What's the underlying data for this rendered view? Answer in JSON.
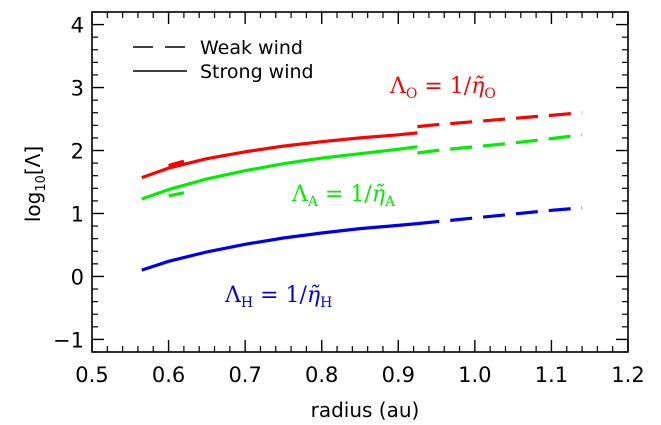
{
  "chart_data": {
    "type": "line",
    "title": "",
    "xlabel": "radius (au)",
    "ylabel_prefix": "log",
    "ylabel_sub": "10",
    "ylabel_bracket": "[Λ]",
    "xlim": [
      0.5,
      1.2
    ],
    "ylim": [
      -1.2,
      4.2
    ],
    "x_ticks": [
      0.5,
      0.6,
      0.7,
      0.8,
      0.9,
      1.0,
      1.1,
      1.2
    ],
    "x_tick_labels": [
      "0.5",
      "0.6",
      "0.7",
      "0.8",
      "0.9",
      "1.0",
      "1.1",
      "1.2"
    ],
    "y_ticks": [
      -1,
      0,
      1,
      2,
      3,
      4
    ],
    "y_tick_labels": [
      "−1",
      "0",
      "1",
      "2",
      "3",
      "4"
    ],
    "grid": false,
    "legend": {
      "placement": "top-left",
      "entries": [
        {
          "label": "Weak wind",
          "style": "dashed"
        },
        {
          "label": "Strong wind",
          "style": "solid"
        }
      ]
    },
    "series": [
      {
        "color": "#ff0000",
        "strong": {
          "x": [
            0.565,
            0.6,
            0.65,
            0.7,
            0.75,
            0.8,
            0.85,
            0.9,
            0.925
          ],
          "y": [
            1.57,
            1.72,
            1.87,
            1.98,
            2.07,
            2.14,
            2.2,
            2.25,
            2.28
          ]
        },
        "weak_segments": [
          {
            "x": [
              0.6,
              0.62
            ],
            "y": [
              1.76,
              1.83
            ]
          },
          {
            "x": [
              0.925,
              0.95,
              1.0,
              1.05,
              1.1,
              1.14
            ],
            "y": [
              2.38,
              2.41,
              2.46,
              2.51,
              2.56,
              2.6
            ]
          }
        ],
        "label": {
          "symbol": "Λ",
          "sub": "O",
          "equals": " = 1/",
          "eta": "η̃",
          "eta_sub": "O"
        }
      },
      {
        "color": "#00ee00",
        "strong": {
          "x": [
            0.565,
            0.6,
            0.65,
            0.7,
            0.75,
            0.8,
            0.85,
            0.9,
            0.925
          ],
          "y": [
            1.23,
            1.38,
            1.55,
            1.68,
            1.79,
            1.88,
            1.95,
            2.02,
            2.06
          ]
        },
        "weak_segments": [
          {
            "x": [
              0.6,
              0.62
            ],
            "y": [
              1.28,
              1.33
            ]
          },
          {
            "x": [
              0.925,
              0.95,
              1.0,
              1.05,
              1.1,
              1.14
            ],
            "y": [
              1.96,
              2.0,
              2.06,
              2.12,
              2.19,
              2.25
            ]
          }
        ],
        "label": {
          "symbol": "Λ",
          "sub": "A",
          "equals": " = 1/",
          "eta": "η̃",
          "eta_sub": "A"
        }
      },
      {
        "color": "#0000ee",
        "strong": {
          "x": [
            0.565,
            0.6,
            0.65,
            0.7,
            0.75,
            0.8,
            0.85,
            0.9,
            0.925
          ],
          "y": [
            0.1,
            0.24,
            0.39,
            0.51,
            0.61,
            0.69,
            0.76,
            0.81,
            0.84
          ]
        },
        "weak_segments": [
          {
            "x": [
              0.925,
              0.95,
              1.0,
              1.05,
              1.1,
              1.14
            ],
            "y": [
              0.84,
              0.87,
              0.93,
              0.99,
              1.05,
              1.09
            ]
          }
        ],
        "label": {
          "symbol": "Λ",
          "sub": "H",
          "equals": " = 1/",
          "eta": "η̃",
          "eta_sub": "H"
        }
      }
    ]
  }
}
